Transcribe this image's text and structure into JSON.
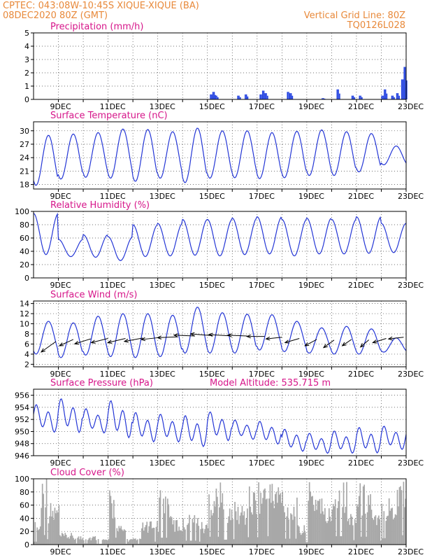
{
  "header": {
    "line1_left": "CPTEC:   043:08W-10:45S  XIQUE-XIQUE (BA)",
    "line2_left": "08DEC2020 80Z (GMT)",
    "line1_right": "Vertical Grid Line: 80Z",
    "line2_right": "TQ0126L028"
  },
  "x_tick_labels": [
    "9DEC",
    "11DEC",
    "13DEC",
    "15DEC",
    "17DEC",
    "19DEC",
    "21DEC",
    "23DEC"
  ],
  "chart_data": [
    {
      "id": "precip",
      "type": "bar",
      "title": "Precipitation (mm/h)",
      "color": "#1f3fe0",
      "y_ticks": [
        "0",
        "1",
        "2",
        "3",
        "4",
        "5"
      ],
      "ylim": [
        0,
        5
      ],
      "note": "hourly bars, mostly zero",
      "events": [
        {
          "day": 15.1,
          "value": 0.4
        },
        {
          "day": 15.2,
          "value": 0.6
        },
        {
          "day": 15.3,
          "value": 0.3
        },
        {
          "day": 16.2,
          "value": 0.3
        },
        {
          "day": 16.5,
          "value": 0.4
        },
        {
          "day": 17.1,
          "value": 0.4
        },
        {
          "day": 17.2,
          "value": 0.7
        },
        {
          "day": 17.3,
          "value": 0.5
        },
        {
          "day": 18.2,
          "value": 0.6
        },
        {
          "day": 18.3,
          "value": 0.5
        },
        {
          "day": 19.6,
          "value": 0.1
        },
        {
          "day": 20.2,
          "value": 0.8
        },
        {
          "day": 20.8,
          "value": 0.3
        },
        {
          "day": 21.1,
          "value": 0.3
        },
        {
          "day": 22.0,
          "value": 0.3
        },
        {
          "day": 22.1,
          "value": 0.8
        },
        {
          "day": 22.4,
          "value": 0.3
        },
        {
          "day": 22.6,
          "value": 0.5
        },
        {
          "day": 22.8,
          "value": 1.6
        },
        {
          "day": 22.9,
          "value": 2.6
        }
      ]
    },
    {
      "id": "temp",
      "type": "line",
      "title": "Surface Temperature (nC)",
      "color": "#2436d6",
      "y_ticks": [
        "18",
        "21",
        "24",
        "27",
        "30"
      ],
      "ylim": [
        17,
        32
      ],
      "daily_max": [
        29.0,
        29.3,
        29.6,
        30.4,
        30.3,
        29.8,
        30.6,
        30.0,
        30.0,
        29.6,
        29.9,
        30.2,
        29.8,
        29.4,
        26.6
      ],
      "daily_min": [
        17.8,
        19.2,
        19.6,
        19.4,
        18.7,
        19.4,
        18.4,
        19.4,
        19.5,
        19.3,
        19.5,
        20.0,
        20.0,
        20.8,
        22.4
      ]
    },
    {
      "id": "rh",
      "type": "line",
      "title": "Relative Humidity (%)",
      "color": "#2436d6",
      "y_ticks": [
        "0",
        "20",
        "40",
        "60",
        "80",
        "100"
      ],
      "ylim": [
        0,
        100
      ],
      "daily_max": [
        97,
        58,
        65,
        62,
        80,
        82,
        88,
        88,
        90,
        92,
        88,
        90,
        88,
        92,
        82
      ],
      "daily_min": [
        35,
        32,
        31,
        26,
        32,
        33,
        34,
        33,
        35,
        36,
        33,
        36,
        36,
        37,
        38
      ]
    },
    {
      "id": "wind",
      "type": "line",
      "title": "Surface Wind (m/s)",
      "color": "#2436d6",
      "y_ticks": [
        "2",
        "4",
        "6",
        "8",
        "10",
        "12",
        "14"
      ],
      "ylim": [
        1.5,
        14.5
      ],
      "daily_max": [
        10.5,
        10.2,
        11.5,
        12.0,
        12.0,
        11.7,
        13.3,
        12.2,
        11.9,
        11.8,
        10.5,
        9.2,
        9.5,
        9.0,
        7.2
      ],
      "daily_min": [
        4.0,
        3.3,
        3.8,
        3.5,
        3.3,
        3.5,
        4.2,
        4.2,
        4.2,
        4.8,
        4.5,
        4.2,
        4.0,
        4.0,
        4.4
      ],
      "wind_vectors": [
        {
          "day": 8.9,
          "u": -3.5,
          "v": -2.5
        },
        {
          "day": 9.6,
          "u": -3.3,
          "v": -1.5
        },
        {
          "day": 10.3,
          "u": -3.8,
          "v": -1.2
        },
        {
          "day": 11.0,
          "u": -4.0,
          "v": -1.0
        },
        {
          "day": 11.7,
          "u": -4.2,
          "v": -1.0
        },
        {
          "day": 12.4,
          "u": -4.4,
          "v": -0.8
        },
        {
          "day": 13.1,
          "u": -4.5,
          "v": -0.5
        },
        {
          "day": 13.8,
          "u": -4.8,
          "v": -0.2
        },
        {
          "day": 14.5,
          "u": -5.0,
          "v": 0.2
        },
        {
          "day": 15.2,
          "u": -5.2,
          "v": 0.4
        },
        {
          "day": 15.9,
          "u": -5.0,
          "v": 0.3
        },
        {
          "day": 16.6,
          "u": -4.6,
          "v": 0.2
        },
        {
          "day": 17.3,
          "u": -4.2,
          "v": 0.0
        },
        {
          "day": 18.0,
          "u": -3.8,
          "v": -0.4
        },
        {
          "day": 18.7,
          "u": -3.4,
          "v": -1.0
        },
        {
          "day": 19.4,
          "u": -2.8,
          "v": -1.5
        },
        {
          "day": 20.1,
          "u": -2.5,
          "v": -1.8
        },
        {
          "day": 20.8,
          "u": -2.2,
          "v": -1.5
        },
        {
          "day": 21.5,
          "u": -2.0,
          "v": -1.7
        },
        {
          "day": 22.2,
          "u": -3.2,
          "v": -1.0
        },
        {
          "day": 22.9,
          "u": -3.6,
          "v": -0.4
        }
      ]
    },
    {
      "id": "pres",
      "type": "line",
      "title": "Surface Pressure (hPa)",
      "subtitle": "Model Altitude: 535.715 m",
      "color": "#2436d6",
      "y_ticks": [
        "946",
        "948",
        "950",
        "952",
        "954",
        "956"
      ],
      "ylim": [
        946,
        957
      ],
      "daily_max": [
        954.6,
        955.6,
        953.9,
        955.3,
        953.3,
        953.0,
        952.8,
        953.4,
        952.0,
        951.8,
        950.5,
        949.8,
        950.2,
        950.8,
        951.0
      ],
      "daily_min": [
        949.6,
        949.5,
        949.5,
        948.6,
        948.0,
        948.0,
        947.2,
        948.2,
        948.5,
        947.7,
        946.5,
        946.2,
        946.2,
        946.2,
        946.8
      ]
    },
    {
      "id": "cloud",
      "type": "area",
      "title": "Cloud Cover (%)",
      "color": "#a8a8a8",
      "y_ticks": [
        "0",
        "20",
        "40",
        "60",
        "80",
        "100"
      ],
      "ylim": [
        0,
        100
      ],
      "segments": [
        {
          "start": 8.0,
          "end": 8.25,
          "level": 30
        },
        {
          "start": 8.25,
          "end": 8.5,
          "level": 97
        },
        {
          "start": 8.5,
          "end": 9.0,
          "level": 55
        },
        {
          "start": 9.0,
          "end": 9.5,
          "level": 15
        },
        {
          "start": 9.5,
          "end": 10.5,
          "level": 12
        },
        {
          "start": 10.5,
          "end": 11.0,
          "level": 8
        },
        {
          "start": 11.0,
          "end": 11.3,
          "level": 70
        },
        {
          "start": 11.3,
          "end": 11.7,
          "level": 25
        },
        {
          "start": 11.7,
          "end": 12.3,
          "level": 8
        },
        {
          "start": 12.3,
          "end": 13.0,
          "level": 30
        },
        {
          "start": 13.0,
          "end": 13.5,
          "level": 70
        },
        {
          "start": 13.5,
          "end": 14.0,
          "level": 35
        },
        {
          "start": 14.0,
          "end": 14.6,
          "level": 40
        },
        {
          "start": 14.6,
          "end": 15.0,
          "level": 30
        },
        {
          "start": 15.0,
          "end": 15.6,
          "level": 80
        },
        {
          "start": 15.6,
          "end": 16.0,
          "level": 50
        },
        {
          "start": 16.0,
          "end": 16.6,
          "level": 55
        },
        {
          "start": 16.6,
          "end": 17.0,
          "level": 75
        },
        {
          "start": 17.0,
          "end": 18.0,
          "level": 85
        },
        {
          "start": 18.0,
          "end": 18.6,
          "level": 60
        },
        {
          "start": 18.6,
          "end": 19.0,
          "level": 25
        },
        {
          "start": 19.0,
          "end": 19.6,
          "level": 80
        },
        {
          "start": 19.6,
          "end": 20.0,
          "level": 50
        },
        {
          "start": 20.0,
          "end": 20.6,
          "level": 85
        },
        {
          "start": 20.6,
          "end": 21.0,
          "level": 45
        },
        {
          "start": 21.0,
          "end": 21.6,
          "level": 80
        },
        {
          "start": 21.6,
          "end": 22.0,
          "level": 40
        },
        {
          "start": 22.0,
          "end": 22.6,
          "level": 65
        },
        {
          "start": 22.6,
          "end": 23.0,
          "level": 95
        }
      ]
    }
  ]
}
